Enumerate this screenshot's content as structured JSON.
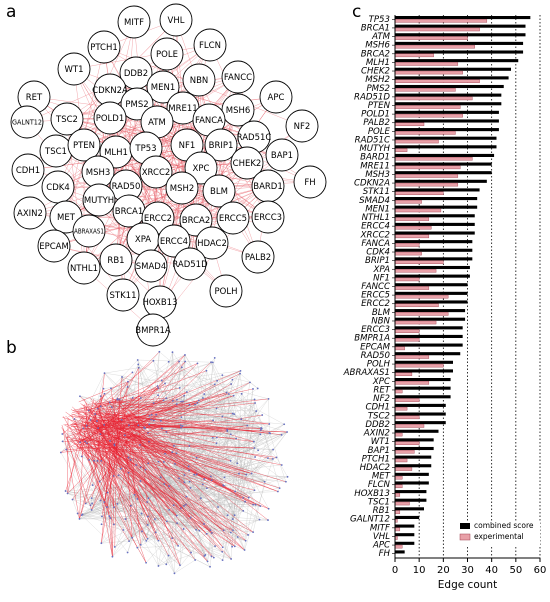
{
  "panel_labels": [
    "a",
    "b",
    "c"
  ],
  "network": {
    "nodes": [
      "VHL",
      "MITF",
      "FLCN",
      "POLE",
      "PTCH1",
      "DDB2",
      "NBN",
      "FANCC",
      "WT1",
      "CDKN2A",
      "MEN1",
      "APC",
      "RET",
      "PMS2",
      "MRE11",
      "MSH6",
      "NF2",
      "POLD1",
      "GALNT12",
      "TSC2",
      "ATM",
      "FANCA",
      "TSC1",
      "PTEN",
      "MLH1",
      "TP53",
      "NF1",
      "BRIP1",
      "RAD51C",
      "BAP1",
      "CDH1",
      "MSH3",
      "XRCC2",
      "XPC",
      "CHEK2",
      "FH",
      "CDK4",
      "RAD50",
      "MSH2",
      "BLM",
      "BARD1",
      "AXIN2",
      "MUTYH",
      "BRCA1",
      "ERCC2",
      "BRCA2",
      "ERCC5",
      "ERCC3",
      "MET",
      "ABRAXAS1",
      "XPA",
      "ERCC4",
      "HDAC2",
      "EPCAM",
      "NTHL1",
      "RB1",
      "SMAD4",
      "RAD51D",
      "PALB2",
      "STK11",
      "HOXB13",
      "POLH",
      "BMPR1A"
    ]
  },
  "chart_data": {
    "type": "hbar",
    "categories": [
      "TP53",
      "BRCA1",
      "ATM",
      "MSH6",
      "BRCA2",
      "MLH1",
      "CHEK2",
      "MSH2",
      "PMS2",
      "RAD51D",
      "PTEN",
      "POLD1",
      "PALB2",
      "POLE",
      "RAD51C",
      "MUTYH",
      "BARD1",
      "MRE11",
      "MSH3",
      "CDKN2A",
      "STK11",
      "SMAD4",
      "MEN1",
      "NTHL1",
      "ERCC4",
      "XRCC2",
      "FANCA",
      "CDK4",
      "BRIP1",
      "XPA",
      "NF1",
      "FANCC",
      "ERCC5",
      "ERCC2",
      "BLM",
      "NBN",
      "ERCC3",
      "BMPR1A",
      "EPCAM",
      "RAD50",
      "POLH",
      "ABRAXAS1",
      "XPC",
      "RET",
      "NF2",
      "CDH1",
      "TSC2",
      "DDB2",
      "AXIN2",
      "WT1",
      "BAP1",
      "PTCH1",
      "HDAC2",
      "MET",
      "FLCN",
      "HOXB13",
      "TSC1",
      "RB1",
      "GALNT12",
      "MITF",
      "VHL",
      "APC",
      "FH"
    ],
    "series": [
      {
        "name": "combined score",
        "color": "#000000",
        "values": [
          56,
          54,
          54,
          53,
          53,
          51,
          48,
          47,
          45,
          44,
          44,
          43,
          43,
          43,
          42,
          42,
          41,
          40,
          40,
          38,
          35,
          34,
          34,
          33,
          33,
          33,
          32,
          32,
          32,
          31,
          31,
          30,
          30,
          30,
          29,
          29,
          28,
          28,
          28,
          27,
          24,
          24,
          23,
          23,
          23,
          21,
          21,
          21,
          18,
          16,
          16,
          15,
          15,
          14,
          14,
          13,
          13,
          12,
          10,
          8,
          8,
          8,
          4
        ]
      },
      {
        "name": "experimental",
        "color": "#e8a0a8",
        "values": [
          38,
          35,
          30,
          33,
          16,
          26,
          28,
          35,
          25,
          32,
          27,
          28,
          12,
          25,
          18,
          5,
          32,
          27,
          26,
          26,
          20,
          11,
          19,
          14,
          15,
          14,
          10,
          11,
          20,
          17,
          10,
          14,
          22,
          18,
          22,
          17,
          10,
          10,
          4,
          14,
          20,
          7,
          14,
          3,
          10,
          5,
          10,
          12,
          3,
          10,
          8,
          5,
          7,
          3,
          3,
          2,
          6,
          2,
          1,
          2,
          1,
          3,
          0
        ]
      }
    ],
    "xlabel": "Edge count",
    "xlim": [
      0,
      60
    ],
    "xticks": [
      0,
      10,
      20,
      30,
      40,
      50,
      60
    ],
    "grid": true,
    "legend": "lower right"
  }
}
